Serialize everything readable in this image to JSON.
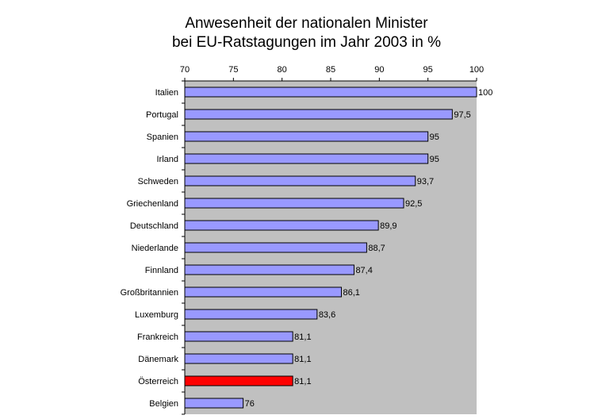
{
  "chart_data": {
    "type": "bar",
    "orientation": "horizontal",
    "title_lines": [
      "Anwesenheit der nationalen Minister",
      "bei EU-Ratstagungen im Jahr 2003 in %"
    ],
    "categories": [
      "Italien",
      "Portugal",
      "Spanien",
      "Irland",
      "Schweden",
      "Griechenland",
      "Deutschland",
      "Niederlande",
      "Finnland",
      "Großbritannien",
      "Luxemburg",
      "Frankreich",
      "Dänemark",
      "Österreich",
      "Belgien"
    ],
    "values": [
      100,
      97.5,
      95,
      95,
      93.7,
      92.5,
      89.9,
      88.7,
      87.4,
      86.1,
      83.6,
      81.1,
      81.1,
      81.1,
      76
    ],
    "value_labels": [
      "100",
      "97,5",
      "95",
      "95",
      "93,7",
      "92,5",
      "89,9",
      "88,7",
      "87,4",
      "86,1",
      "83,6",
      "81,1",
      "81,1",
      "81,1",
      "76"
    ],
    "xlim": [
      70,
      100
    ],
    "x_ticks": [
      70,
      75,
      80,
      85,
      90,
      95,
      100
    ],
    "x_axis_position": "top",
    "grid": false,
    "legend": "none",
    "highlight_category": "Österreich",
    "colors": {
      "bar": "#9999ff",
      "highlight": "#ff0000",
      "plot_background": "#c0c0c0",
      "bar_border": "#000000"
    }
  }
}
